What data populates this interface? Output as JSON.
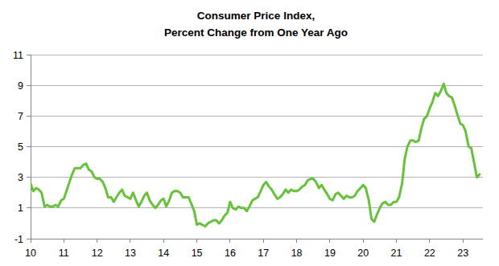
{
  "chart_data": {
    "type": "line",
    "title": "Consumer Price Index,",
    "subtitle": "Percent Change from One Year Ago",
    "color": "#66c23a",
    "grid": true,
    "xlim": [
      10,
      23.6
    ],
    "xticks": [
      10,
      11,
      12,
      13,
      14,
      15,
      16,
      17,
      18,
      19,
      20,
      21,
      22,
      23
    ],
    "ylim": [
      -1,
      11
    ],
    "yticks": [
      -1,
      1,
      3,
      5,
      7,
      9,
      11
    ],
    "x": [
      10.0,
      10.08,
      10.17,
      10.25,
      10.33,
      10.42,
      10.5,
      10.58,
      10.67,
      10.75,
      10.83,
      10.92,
      11.0,
      11.08,
      11.17,
      11.25,
      11.33,
      11.42,
      11.5,
      11.58,
      11.67,
      11.75,
      11.83,
      11.92,
      12.0,
      12.08,
      12.17,
      12.25,
      12.33,
      12.42,
      12.5,
      12.58,
      12.67,
      12.75,
      12.83,
      12.92,
      13.0,
      13.08,
      13.17,
      13.25,
      13.33,
      13.42,
      13.5,
      13.58,
      13.67,
      13.75,
      13.83,
      13.92,
      14.0,
      14.08,
      14.17,
      14.25,
      14.33,
      14.42,
      14.5,
      14.58,
      14.67,
      14.75,
      14.83,
      14.92,
      15.0,
      15.08,
      15.17,
      15.25,
      15.33,
      15.42,
      15.5,
      15.58,
      15.67,
      15.75,
      15.83,
      15.92,
      16.0,
      16.08,
      16.17,
      16.25,
      16.33,
      16.42,
      16.5,
      16.58,
      16.67,
      16.75,
      16.83,
      16.92,
      17.0,
      17.08,
      17.17,
      17.25,
      17.33,
      17.42,
      17.5,
      17.58,
      17.67,
      17.75,
      17.83,
      17.92,
      18.0,
      18.08,
      18.17,
      18.25,
      18.33,
      18.42,
      18.5,
      18.58,
      18.67,
      18.75,
      18.83,
      18.92,
      19.0,
      19.08,
      19.17,
      19.25,
      19.33,
      19.42,
      19.5,
      19.58,
      19.67,
      19.75,
      19.83,
      19.92,
      20.0,
      20.08,
      20.17,
      20.25,
      20.33,
      20.42,
      20.5,
      20.58,
      20.67,
      20.75,
      20.83,
      20.92,
      21.0,
      21.08,
      21.17,
      21.25,
      21.33,
      21.42,
      21.5,
      21.58,
      21.67,
      21.75,
      21.83,
      21.92,
      22.0,
      22.08,
      22.17,
      22.25,
      22.33,
      22.42,
      22.5,
      22.58,
      22.67,
      22.75,
      22.83,
      22.92,
      23.0,
      23.08,
      23.17,
      23.25,
      23.33,
      23.42,
      23.5
    ],
    "values": [
      2.6,
      2.1,
      2.3,
      2.2,
      2.0,
      1.1,
      1.2,
      1.1,
      1.1,
      1.2,
      1.1,
      1.5,
      1.6,
      2.1,
      2.7,
      3.2,
      3.6,
      3.6,
      3.6,
      3.8,
      3.9,
      3.5,
      3.4,
      3.0,
      2.9,
      2.9,
      2.7,
      2.3,
      1.7,
      1.7,
      1.4,
      1.7,
      2.0,
      2.2,
      1.8,
      1.7,
      1.6,
      2.0,
      1.5,
      1.1,
      1.4,
      1.8,
      2.0,
      1.5,
      1.2,
      1.0,
      1.2,
      1.5,
      1.6,
      1.1,
      1.5,
      2.0,
      2.1,
      2.1,
      2.0,
      1.7,
      1.7,
      1.7,
      1.3,
      0.8,
      -0.1,
      0.0,
      -0.1,
      -0.2,
      0.0,
      0.1,
      0.2,
      0.2,
      0.0,
      0.2,
      0.5,
      0.7,
      1.4,
      1.0,
      0.9,
      1.1,
      1.0,
      1.0,
      0.8,
      1.1,
      1.5,
      1.6,
      1.7,
      2.1,
      2.5,
      2.7,
      2.4,
      2.2,
      1.9,
      1.6,
      1.7,
      1.9,
      2.2,
      2.0,
      2.2,
      2.1,
      2.1,
      2.2,
      2.4,
      2.5,
      2.8,
      2.9,
      2.9,
      2.7,
      2.3,
      2.5,
      2.2,
      1.9,
      1.6,
      1.5,
      1.9,
      2.0,
      1.8,
      1.6,
      1.8,
      1.7,
      1.7,
      1.8,
      2.1,
      2.3,
      2.5,
      2.3,
      1.5,
      0.3,
      0.1,
      0.6,
      1.0,
      1.3,
      1.4,
      1.2,
      1.2,
      1.4,
      1.4,
      1.7,
      2.6,
      4.2,
      5.0,
      5.4,
      5.4,
      5.3,
      5.4,
      6.2,
      6.8,
      7.0,
      7.5,
      7.9,
      8.5,
      8.3,
      8.6,
      9.1,
      8.5,
      8.3,
      8.2,
      7.7,
      7.1,
      6.5,
      6.4,
      6.0,
      5.0,
      4.9,
      4.0,
      3.0,
      3.2
    ]
  }
}
